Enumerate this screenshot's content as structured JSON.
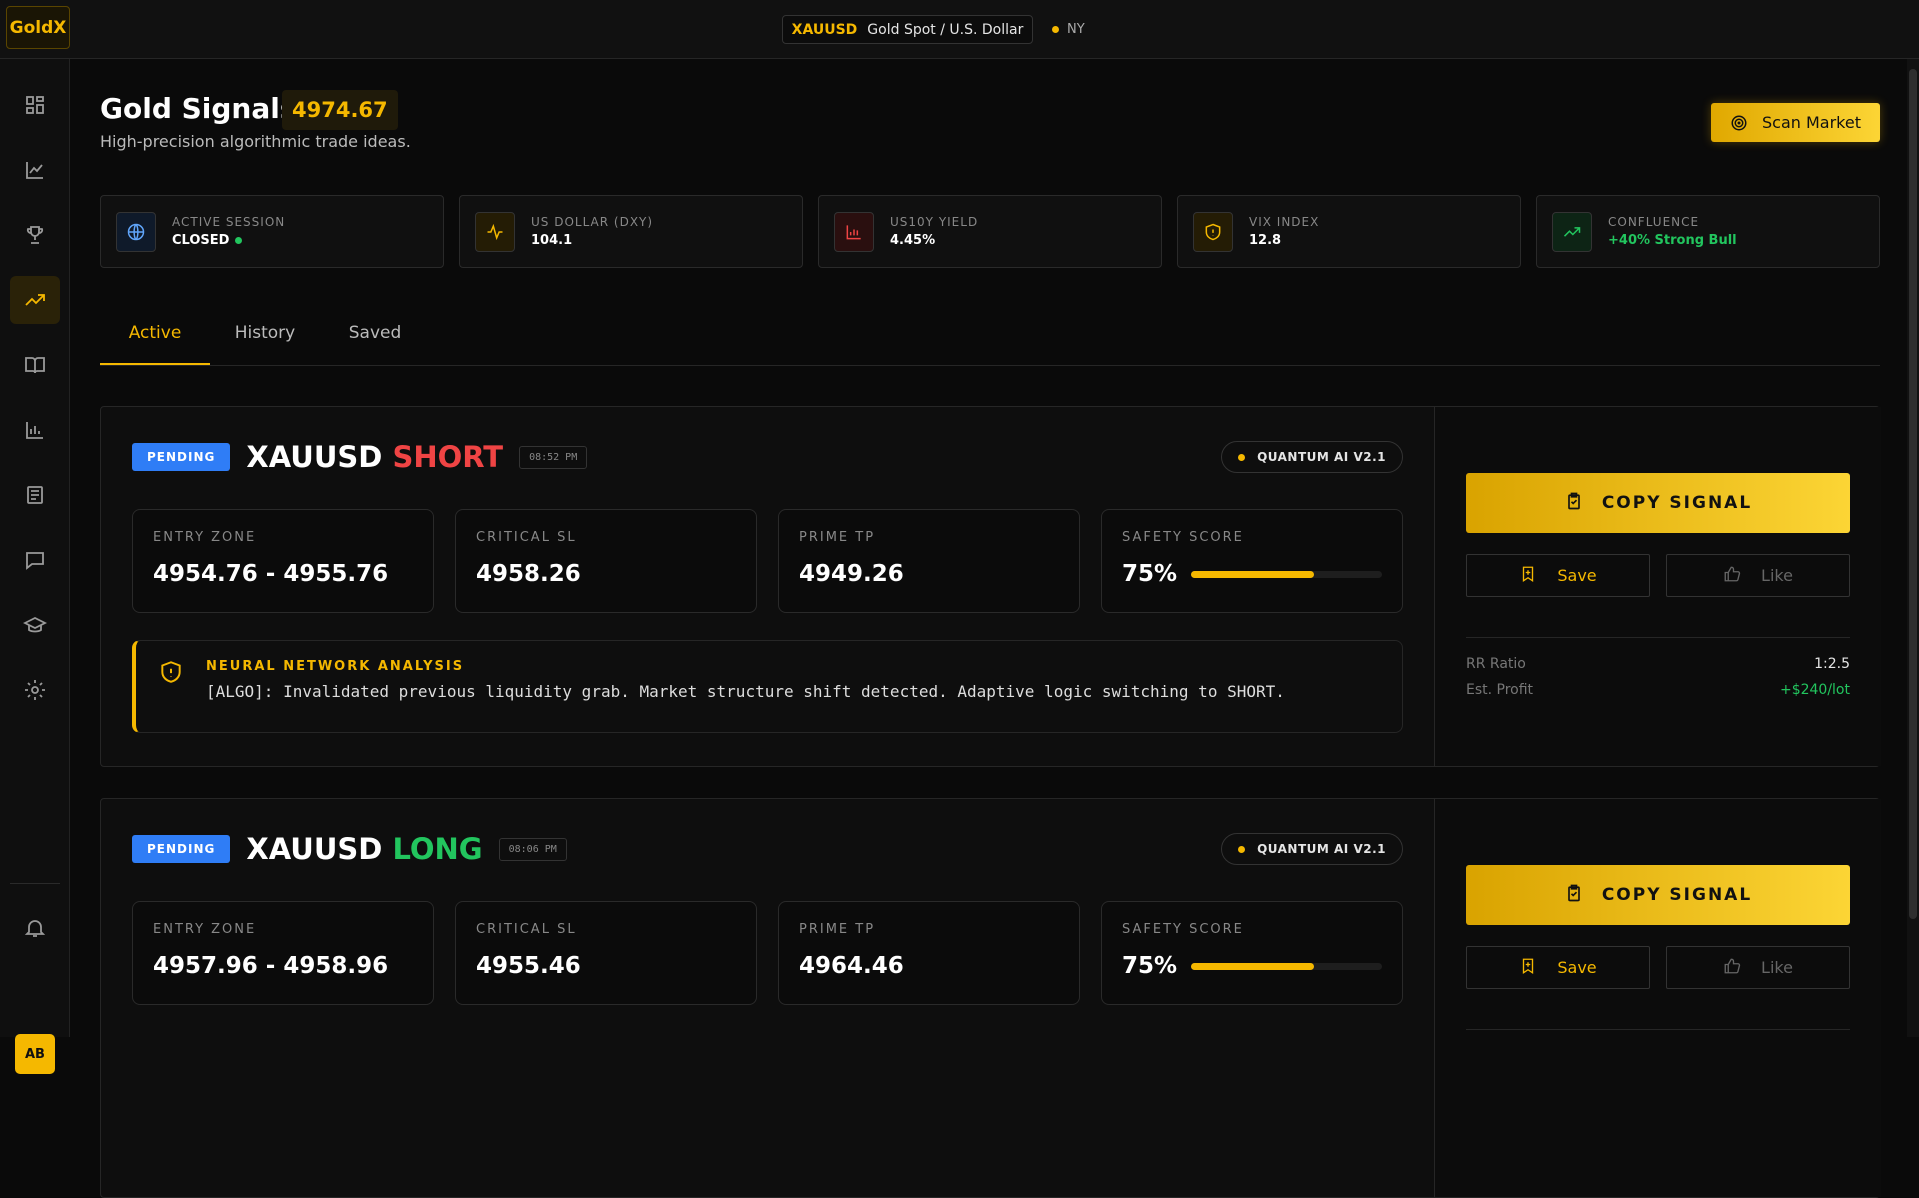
{
  "header": {
    "logo": "GoldX",
    "symbol": "XAUUSD",
    "symbol_name": "Gold Spot / U.S. Dollar",
    "session": "NY"
  },
  "sidebar": {
    "avatar": "AB"
  },
  "page": {
    "title": "Gold Signals",
    "price": "4974.67",
    "subtitle": "High-precision algorithmic trade ideas.",
    "scan_button": "Scan Market"
  },
  "stats": [
    {
      "label": "ACTIVE SESSION",
      "value": "CLOSED"
    },
    {
      "label": "US DOLLAR (DXY)",
      "value": "104.1"
    },
    {
      "label": "US10Y YIELD",
      "value": "4.45%"
    },
    {
      "label": "VIX INDEX",
      "value": "12.8"
    },
    {
      "label": "CONFLUENCE",
      "value": "+40% Strong Bull"
    }
  ],
  "tabs": [
    "Active",
    "History",
    "Saved"
  ],
  "signals": [
    {
      "status": "PENDING",
      "symbol": "XAUUSD",
      "direction": "SHORT",
      "direction_color": "#ef4444",
      "time": "08:52 PM",
      "model": "QUANTUM AI V2.1",
      "fields": [
        {
          "label": "ENTRY ZONE",
          "value": "4954.76 - 4955.76"
        },
        {
          "label": "CRITICAL SL",
          "value": "4958.26"
        },
        {
          "label": "PRIME TP",
          "value": "4949.26"
        }
      ],
      "safety_label": "SAFETY SCORE",
      "safety_score": {
        "value": 75,
        "label": "75%"
      },
      "analysis_title": "NEURAL NETWORK ANALYSIS",
      "analysis": "[ALGO]: Invalidated previous liquidity grab. Market structure shift detected. Adaptive logic switching to SHORT.",
      "copy": "COPY SIGNAL",
      "save": "Save",
      "like": "Like",
      "rr_label": "RR Ratio",
      "rr": "1:2.5",
      "profit_label": "Est. Profit",
      "profit": "+$240/lot"
    },
    {
      "status": "PENDING",
      "symbol": "XAUUSD",
      "direction": "LONG",
      "direction_color": "#22c55e",
      "time": "08:06 PM",
      "model": "QUANTUM AI V2.1",
      "fields": [
        {
          "label": "ENTRY ZONE",
          "value": "4957.96 - 4958.96"
        },
        {
          "label": "CRITICAL SL",
          "value": "4955.46"
        },
        {
          "label": "PRIME TP",
          "value": "4964.46"
        }
      ],
      "safety_label": "SAFETY SCORE",
      "safety_score": {
        "value": 75,
        "label": "75%"
      },
      "copy": "COPY SIGNAL",
      "save": "Save",
      "like": "Like"
    }
  ]
}
